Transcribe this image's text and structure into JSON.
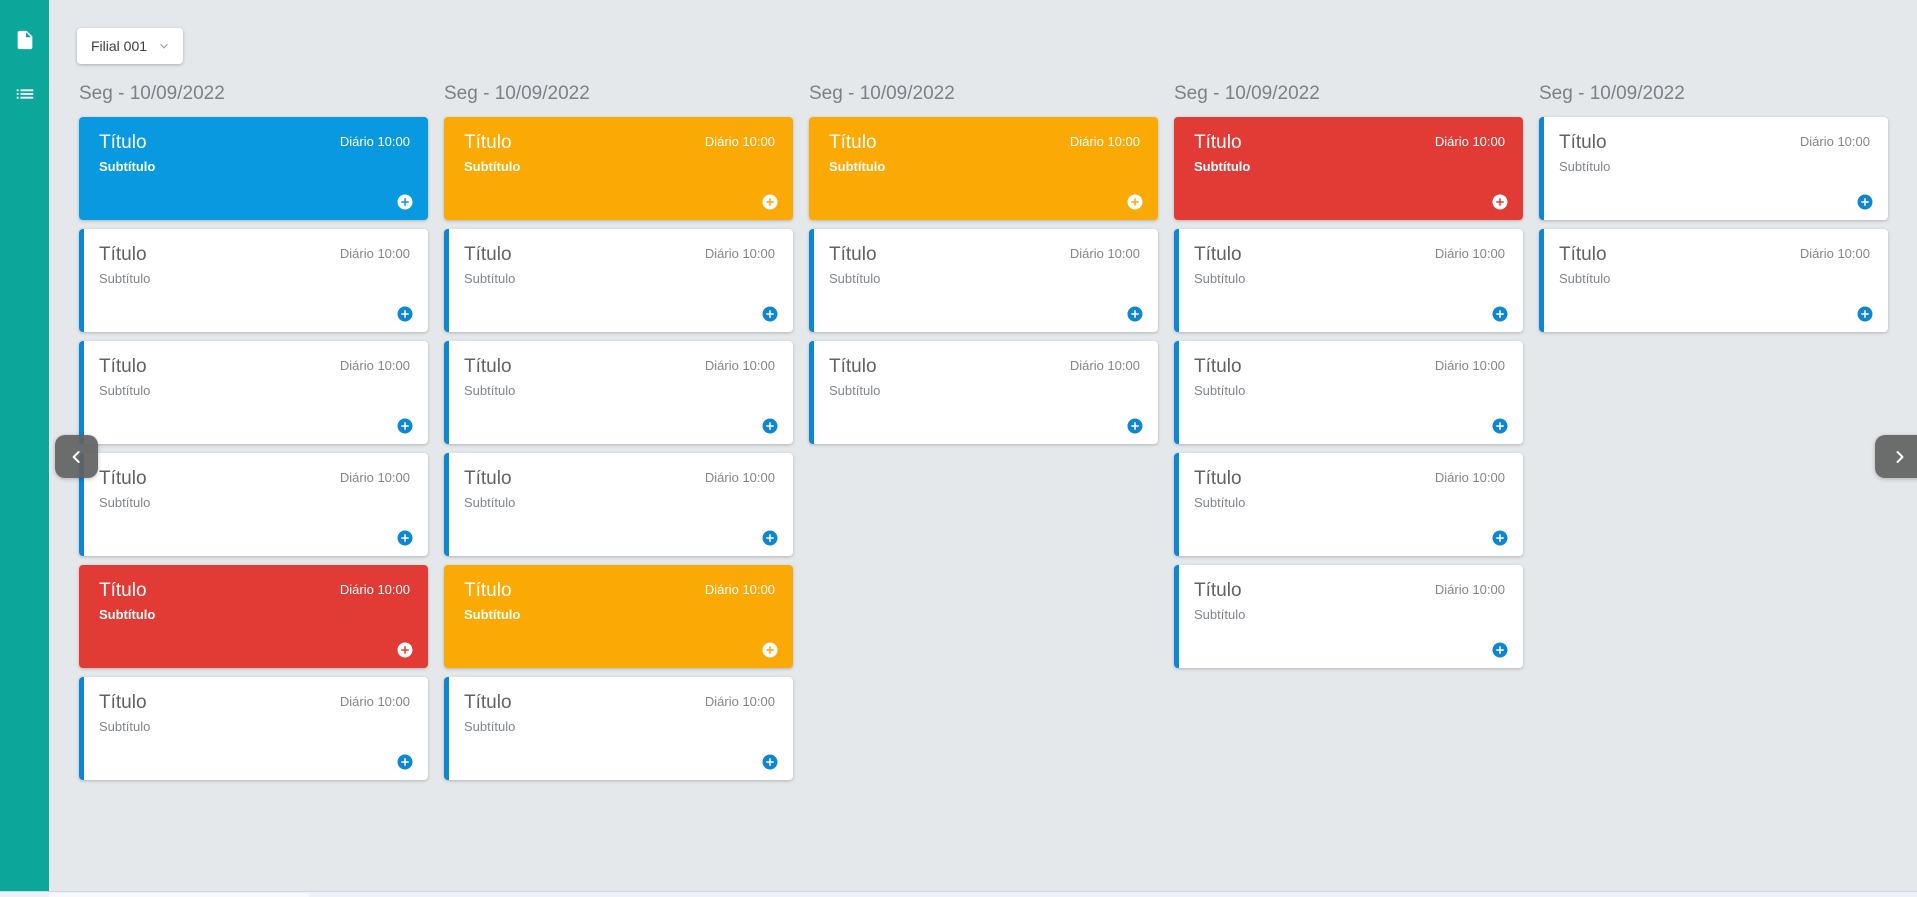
{
  "colors": {
    "sidebar_teal": "#0ba79a",
    "background": "#e4e8eb",
    "card_blue": "#0899e0",
    "card_orange": "#fba905",
    "card_red": "#e23b36",
    "accent_blue": "#0e87d2"
  },
  "sidebar": {
    "icons": [
      {
        "name": "document-icon"
      },
      {
        "name": "list-icon"
      }
    ]
  },
  "toolbar": {
    "branch_label": "Filial 001",
    "chevron_icon": "chevron-down-icon"
  },
  "board": {
    "columns": [
      {
        "header": "Seg - 10/09/2022",
        "cards": [
          {
            "color": "blue",
            "title": "Título",
            "subtitle": "Subtítulo",
            "schedule": "Diário 10:00"
          },
          {
            "color": "white",
            "title": "Título",
            "subtitle": "Subtítulo",
            "schedule": "Diário 10:00"
          },
          {
            "color": "white",
            "title": "Título",
            "subtitle": "Subtítulo",
            "schedule": "Diário 10:00"
          },
          {
            "color": "white",
            "title": "Título",
            "subtitle": "Subtítulo",
            "schedule": "Diário 10:00"
          },
          {
            "color": "red",
            "title": "Título",
            "subtitle": "Subtítulo",
            "schedule": "Diário 10:00"
          },
          {
            "color": "white",
            "title": "Título",
            "subtitle": "Subtítulo",
            "schedule": "Diário 10:00"
          }
        ]
      },
      {
        "header": "Seg - 10/09/2022",
        "cards": [
          {
            "color": "orange",
            "title": "Título",
            "subtitle": "Subtítulo",
            "schedule": "Diário 10:00"
          },
          {
            "color": "white",
            "title": "Título",
            "subtitle": "Subtítulo",
            "schedule": "Diário 10:00"
          },
          {
            "color": "white",
            "title": "Título",
            "subtitle": "Subtítulo",
            "schedule": "Diário 10:00"
          },
          {
            "color": "white",
            "title": "Título",
            "subtitle": "Subtítulo",
            "schedule": "Diário 10:00"
          },
          {
            "color": "orange",
            "title": "Título",
            "subtitle": "Subtítulo",
            "schedule": "Diário 10:00"
          },
          {
            "color": "white",
            "title": "Título",
            "subtitle": "Subtítulo",
            "schedule": "Diário 10:00"
          }
        ]
      },
      {
        "header": "Seg - 10/09/2022",
        "cards": [
          {
            "color": "orange",
            "title": "Título",
            "subtitle": "Subtítulo",
            "schedule": "Diário 10:00"
          },
          {
            "color": "white",
            "title": "Título",
            "subtitle": "Subtítulo",
            "schedule": "Diário 10:00"
          },
          {
            "color": "white",
            "title": "Título",
            "subtitle": "Subtítulo",
            "schedule": "Diário 10:00"
          }
        ]
      },
      {
        "header": "Seg - 10/09/2022",
        "cards": [
          {
            "color": "red",
            "title": "Título",
            "subtitle": "Subtítulo",
            "schedule": "Diário 10:00"
          },
          {
            "color": "white",
            "title": "Título",
            "subtitle": "Subtítulo",
            "schedule": "Diário 10:00"
          },
          {
            "color": "white",
            "title": "Título",
            "subtitle": "Subtítulo",
            "schedule": "Diário 10:00"
          },
          {
            "color": "white",
            "title": "Título",
            "subtitle": "Subtítulo",
            "schedule": "Diário 10:00"
          },
          {
            "color": "white",
            "title": "Título",
            "subtitle": "Subtítulo",
            "schedule": "Diário 10:00"
          }
        ]
      },
      {
        "header": "Seg - 10/09/2022",
        "cards": [
          {
            "color": "white",
            "title": "Título",
            "subtitle": "Subtítulo",
            "schedule": "Diário 10:00"
          },
          {
            "color": "white",
            "title": "Título",
            "subtitle": "Subtítulo",
            "schedule": "Diário 10:00"
          }
        ]
      }
    ]
  },
  "nav": {
    "prev_icon": "chevron-left-icon",
    "next_icon": "chevron-right-icon"
  }
}
